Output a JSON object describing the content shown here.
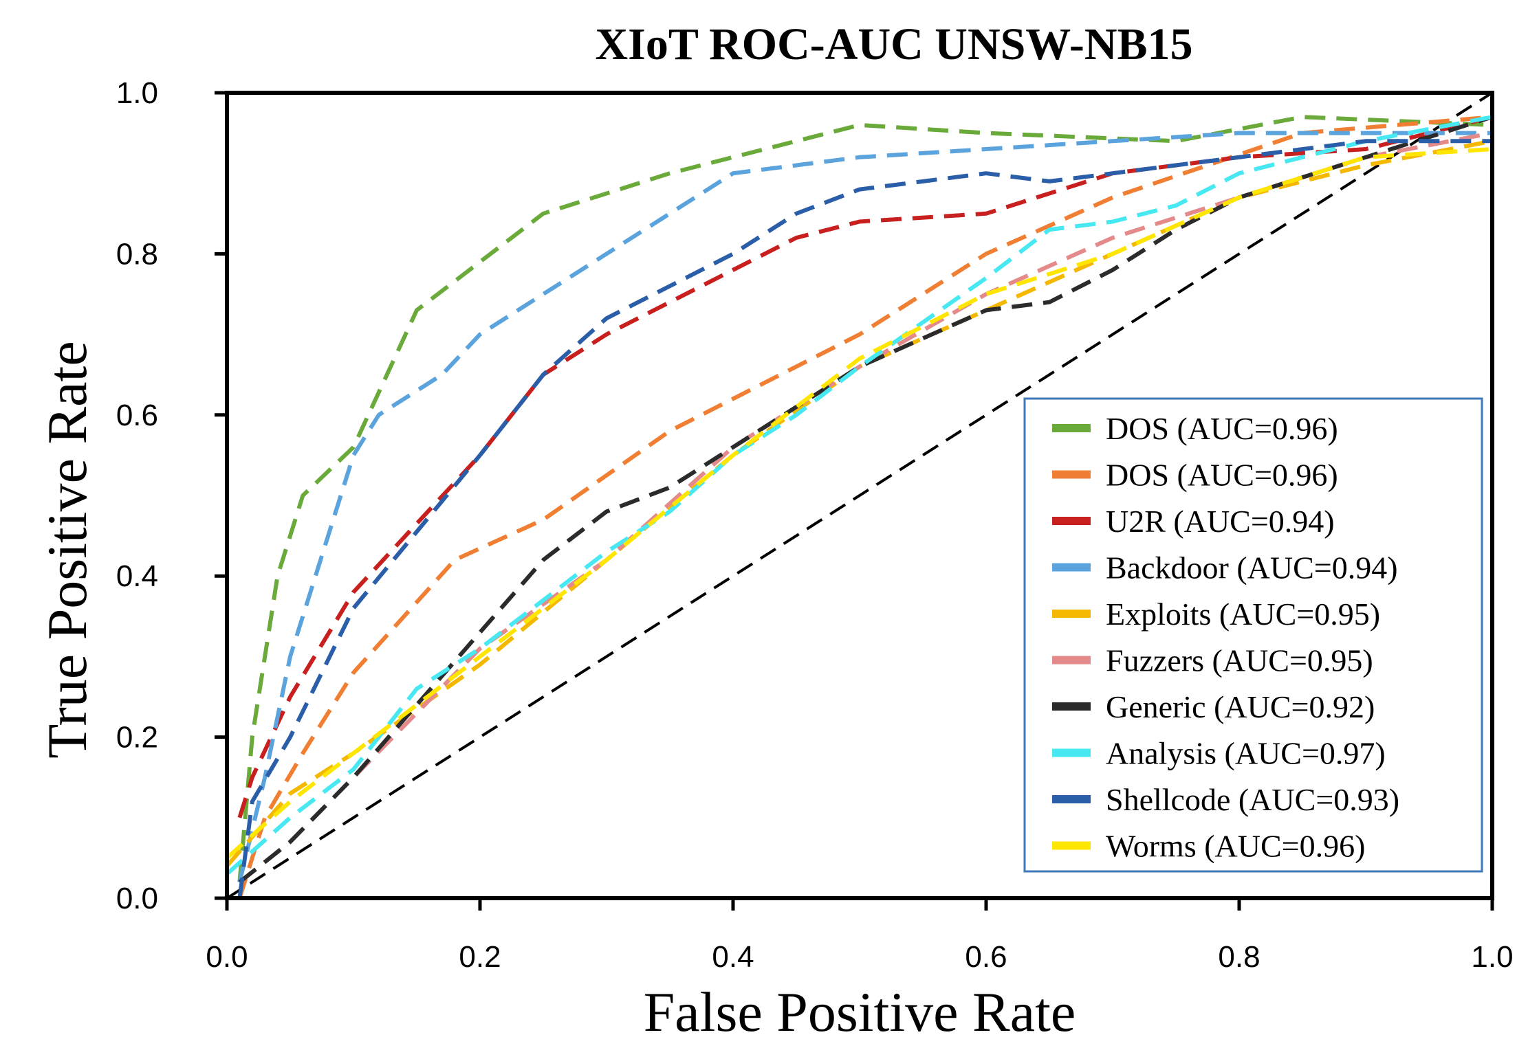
{
  "chart_data": {
    "type": "line",
    "title": "XIoT ROC-AUC UNSW-NB15",
    "xlabel": "False Positive Rate",
    "ylabel": "True Positive Rate",
    "xlim": [
      0.0,
      1.0
    ],
    "ylim": [
      0.0,
      1.0
    ],
    "grid": false,
    "legend_position": "lower-right",
    "x_ticks": [
      {
        "value": 0.0,
        "label": "0.0"
      },
      {
        "value": 0.2,
        "label": "0.2"
      },
      {
        "value": 0.4,
        "label": "0.4"
      },
      {
        "value": 0.6,
        "label": "0.6"
      },
      {
        "value": 0.8,
        "label": "0.8"
      },
      {
        "value": 1.0,
        "label": "1.0"
      }
    ],
    "y_ticks": [
      {
        "value": 0.0,
        "label": "0.0"
      },
      {
        "value": 0.2,
        "label": "0.2"
      },
      {
        "value": 0.4,
        "label": "0.4"
      },
      {
        "value": 0.6,
        "label": "0.6"
      },
      {
        "value": 0.8,
        "label": "0.8"
      },
      {
        "value": 1.0,
        "label": "1.0"
      }
    ],
    "diagonal": {
      "x": [
        0.0,
        1.0
      ],
      "y": [
        0.0,
        1.0
      ],
      "color": "#000000"
    },
    "series": [
      {
        "name": "DOS (AUC=0.96)",
        "color": "#6aaa3a",
        "x": [
          0.01,
          0.02,
          0.03,
          0.04,
          0.06,
          0.1,
          0.15,
          0.25,
          0.35,
          0.5,
          0.6,
          0.75,
          0.85,
          1.0
        ],
        "y": [
          0.02,
          0.2,
          0.3,
          0.4,
          0.5,
          0.56,
          0.73,
          0.85,
          0.9,
          0.96,
          0.95,
          0.94,
          0.97,
          0.96
        ]
      },
      {
        "name": "DOS (AUC=0.96)",
        "color": "#f07f33",
        "x": [
          0.01,
          0.03,
          0.06,
          0.1,
          0.18,
          0.25,
          0.35,
          0.5,
          0.6,
          0.7,
          0.85,
          1.0
        ],
        "y": [
          0.0,
          0.1,
          0.18,
          0.28,
          0.42,
          0.47,
          0.58,
          0.7,
          0.8,
          0.87,
          0.95,
          0.97
        ]
      },
      {
        "name": "U2R (AUC=0.94)",
        "color": "#c81f1f",
        "x": [
          0.01,
          0.02,
          0.05,
          0.1,
          0.2,
          0.25,
          0.3,
          0.4,
          0.45,
          0.5,
          0.6,
          0.7,
          0.8,
          0.9,
          1.0
        ],
        "y": [
          0.1,
          0.15,
          0.25,
          0.38,
          0.55,
          0.65,
          0.7,
          0.78,
          0.82,
          0.84,
          0.85,
          0.9,
          0.92,
          0.93,
          0.97
        ]
      },
      {
        "name": "Backdoor (AUC=0.94)",
        "color": "#5ba3dd",
        "x": [
          0.01,
          0.03,
          0.05,
          0.08,
          0.1,
          0.12,
          0.17,
          0.2,
          0.25,
          0.3,
          0.4,
          0.5,
          0.6,
          0.7,
          0.8,
          0.9,
          1.0
        ],
        "y": [
          0.02,
          0.15,
          0.3,
          0.45,
          0.55,
          0.6,
          0.65,
          0.7,
          0.75,
          0.8,
          0.9,
          0.92,
          0.93,
          0.94,
          0.95,
          0.95,
          0.95
        ]
      },
      {
        "name": "Exploits (AUC=0.95)",
        "color": "#f5b800",
        "x": [
          0.0,
          0.05,
          0.1,
          0.2,
          0.3,
          0.4,
          0.5,
          0.6,
          0.7,
          0.8,
          0.9,
          1.0
        ],
        "y": [
          0.04,
          0.13,
          0.18,
          0.29,
          0.42,
          0.55,
          0.66,
          0.73,
          0.8,
          0.87,
          0.91,
          0.94
        ]
      },
      {
        "name": "Fuzzers (AUC=0.95)",
        "color": "#e58a8a",
        "x": [
          0.01,
          0.05,
          0.1,
          0.2,
          0.3,
          0.4,
          0.5,
          0.6,
          0.7,
          0.8,
          0.9,
          1.0
        ],
        "y": [
          0.02,
          0.07,
          0.15,
          0.31,
          0.42,
          0.56,
          0.66,
          0.75,
          0.82,
          0.87,
          0.92,
          0.95
        ]
      },
      {
        "name": "Generic (AUC=0.92)",
        "color": "#2b2b2b",
        "x": [
          0.01,
          0.05,
          0.1,
          0.2,
          0.25,
          0.3,
          0.35,
          0.4,
          0.45,
          0.5,
          0.6,
          0.65,
          0.7,
          0.75,
          0.8,
          0.9,
          1.0
        ],
        "y": [
          0.02,
          0.07,
          0.15,
          0.33,
          0.42,
          0.48,
          0.51,
          0.56,
          0.61,
          0.66,
          0.73,
          0.74,
          0.78,
          0.83,
          0.87,
          0.92,
          0.97
        ]
      },
      {
        "name": "Analysis (AUC=0.97)",
        "color": "#47e8f2",
        "x": [
          0.0,
          0.05,
          0.1,
          0.15,
          0.2,
          0.25,
          0.3,
          0.35,
          0.4,
          0.45,
          0.5,
          0.6,
          0.65,
          0.7,
          0.75,
          0.8,
          0.9,
          1.0
        ],
        "y": [
          0.03,
          0.1,
          0.16,
          0.26,
          0.31,
          0.37,
          0.43,
          0.48,
          0.55,
          0.6,
          0.66,
          0.77,
          0.83,
          0.84,
          0.86,
          0.9,
          0.94,
          0.97
        ]
      },
      {
        "name": "Shellcode (AUC=0.93)",
        "color": "#2b5ea8",
        "x": [
          0.01,
          0.02,
          0.05,
          0.1,
          0.2,
          0.25,
          0.3,
          0.4,
          0.45,
          0.5,
          0.6,
          0.65,
          0.7,
          0.8,
          0.9,
          1.0
        ],
        "y": [
          0.0,
          0.12,
          0.2,
          0.36,
          0.55,
          0.65,
          0.72,
          0.8,
          0.85,
          0.88,
          0.9,
          0.89,
          0.9,
          0.92,
          0.94,
          0.94
        ]
      },
      {
        "name": "Worms (AUC=0.96)",
        "color": "#ffe600",
        "x": [
          0.0,
          0.05,
          0.1,
          0.2,
          0.3,
          0.4,
          0.5,
          0.6,
          0.7,
          0.8,
          0.9,
          1.0
        ],
        "y": [
          0.05,
          0.12,
          0.18,
          0.3,
          0.42,
          0.55,
          0.67,
          0.75,
          0.8,
          0.87,
          0.92,
          0.93
        ]
      }
    ]
  }
}
